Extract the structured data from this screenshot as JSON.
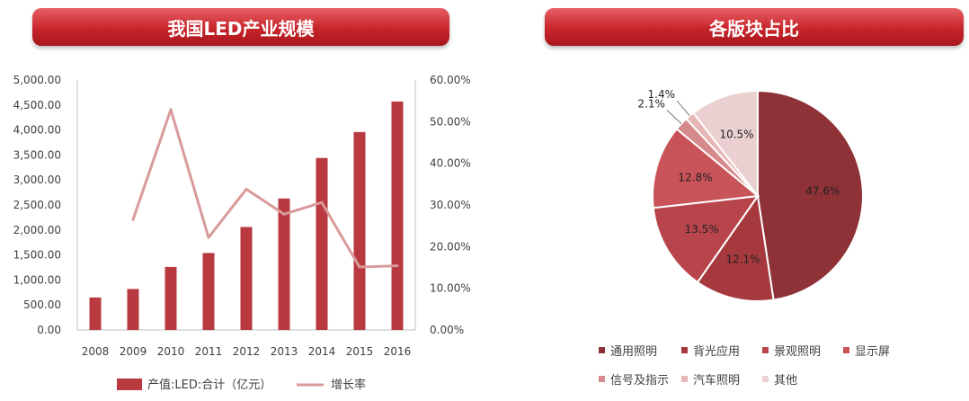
{
  "left_chart_title": "我国LED产业规模",
  "right_chart_title": "各版块占比",
  "chart_data": [
    {
      "type": "bar",
      "title": "我国LED产业规模",
      "categories": [
        "2008",
        "2009",
        "2010",
        "2011",
        "2012",
        "2013",
        "2014",
        "2015",
        "2016"
      ],
      "y_ticks": [
        "0.00",
        "500.00",
        "1,000.00",
        "1,500.00",
        "2,000.00",
        "2,500.00",
        "3,000.00",
        "3,500.00",
        "4,000.00",
        "4,500.00",
        "5,000.00"
      ],
      "y2_ticks": [
        "0.00%",
        "10.00%",
        "20.00%",
        "30.00%",
        "40.00%",
        "50.00%",
        "60.00%"
      ],
      "ylim": [
        0,
        5000
      ],
      "y2lim": [
        0,
        60
      ],
      "series": [
        {
          "name": "产值:LED:合计（亿元）",
          "type": "bar",
          "color": "#b83a40",
          "values": [
            650,
            820,
            1260,
            1540,
            2060,
            2630,
            3440,
            3960,
            4570
          ]
        },
        {
          "name": "增长率",
          "type": "line",
          "axis": "right",
          "color": "#d99a9a",
          "values": [
            null,
            26.5,
            52.9,
            22.2,
            33.8,
            27.8,
            30.6,
            15.1,
            15.4
          ]
        }
      ]
    },
    {
      "type": "pie",
      "title": "各版块占比",
      "slices": [
        {
          "name": "通用照明",
          "value": 47.6,
          "label": "47.6%",
          "color": "#8e3237"
        },
        {
          "name": "背光应用",
          "value": 12.1,
          "label": "12.1%",
          "color": "#a6393e"
        },
        {
          "name": "景观照明",
          "value": 13.5,
          "label": "13.5%",
          "color": "#b8454b"
        },
        {
          "name": "显示屏",
          "value": 12.8,
          "label": "12.8%",
          "color": "#c85358"
        },
        {
          "name": "信号及指示",
          "value": 2.1,
          "label": "2.1%",
          "color": "#d78a8c"
        },
        {
          "name": "汽车照明",
          "value": 1.4,
          "label": "1.4%",
          "color": "#e8b6b6"
        },
        {
          "name": "其他",
          "value": 10.5,
          "label": "10.5%",
          "color": "#ead0d0"
        }
      ]
    }
  ]
}
